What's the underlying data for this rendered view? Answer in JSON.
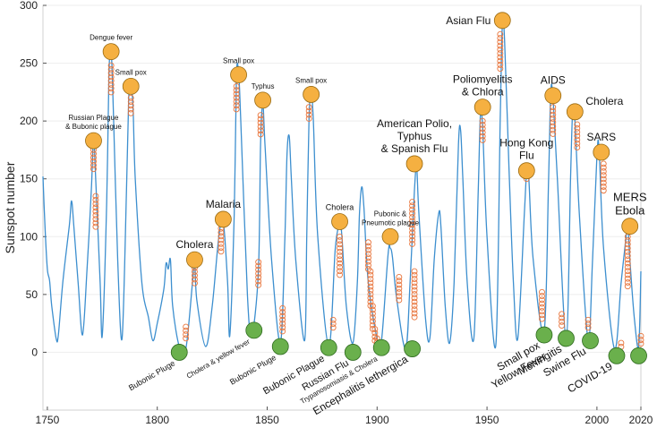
{
  "chart_data": {
    "type": "line",
    "title": "",
    "xlabel": "",
    "ylabel": "Sunspot number",
    "xlim": [
      1748,
      2020
    ],
    "ylim": [
      -50,
      300
    ],
    "x_ticks": [
      1750,
      1800,
      1850,
      1900,
      1950,
      2000,
      2020
    ],
    "y_ticks": [
      0,
      50,
      100,
      150,
      200,
      250,
      300
    ],
    "line_color": "#3d8fcf",
    "epidemic_color": "#f5b041",
    "pandemic_low_color": "#6ab04c",
    "marker_color": "#e8743b",
    "sunspot_series": {
      "name": "Sunspot number",
      "points": [
        [
          1748,
          152
        ],
        [
          1749,
          105
        ],
        [
          1750,
          72
        ],
        [
          1751,
          62
        ],
        [
          1752,
          40
        ],
        [
          1754,
          12
        ],
        [
          1755,
          15
        ],
        [
          1757,
          60
        ],
        [
          1760,
          110
        ],
        [
          1761,
          131
        ],
        [
          1762,
          110
        ],
        [
          1764,
          60
        ],
        [
          1766,
          15
        ],
        [
          1768,
          70
        ],
        [
          1770,
          140
        ],
        [
          1771,
          185
        ],
        [
          1772,
          150
        ],
        [
          1774,
          60
        ],
        [
          1775,
          15
        ],
        [
          1777,
          130
        ],
        [
          1778,
          240
        ],
        [
          1779,
          261
        ],
        [
          1780,
          210
        ],
        [
          1782,
          80
        ],
        [
          1784,
          12
        ],
        [
          1786,
          140
        ],
        [
          1787,
          220
        ],
        [
          1788,
          232
        ],
        [
          1789,
          210
        ],
        [
          1790,
          150
        ],
        [
          1793,
          60
        ],
        [
          1796,
          30
        ],
        [
          1798,
          10
        ],
        [
          1800,
          25
        ],
        [
          1803,
          55
        ],
        [
          1804,
          77
        ],
        [
          1805,
          72
        ],
        [
          1806,
          80
        ],
        [
          1807,
          40
        ],
        [
          1810,
          5
        ],
        [
          1813,
          3
        ],
        [
          1816,
          60
        ],
        [
          1817,
          78
        ],
        [
          1818,
          45
        ],
        [
          1822,
          5
        ],
        [
          1825,
          40
        ],
        [
          1828,
          100
        ],
        [
          1830,
          113
        ],
        [
          1832,
          60
        ],
        [
          1833,
          15
        ],
        [
          1835,
          120
        ],
        [
          1836,
          238
        ],
        [
          1837,
          242
        ],
        [
          1838,
          200
        ],
        [
          1841,
          50
        ],
        [
          1843,
          15
        ],
        [
          1846,
          70
        ],
        [
          1847,
          180
        ],
        [
          1848,
          215
        ],
        [
          1849,
          180
        ],
        [
          1852,
          80
        ],
        [
          1856,
          8
        ],
        [
          1858,
          95
        ],
        [
          1859,
          170
        ],
        [
          1860,
          187
        ],
        [
          1861,
          150
        ],
        [
          1863,
          80
        ],
        [
          1867,
          10
        ],
        [
          1868,
          100
        ],
        [
          1869,
          200
        ],
        [
          1870,
          225
        ],
        [
          1871,
          200
        ],
        [
          1873,
          100
        ],
        [
          1878,
          5
        ],
        [
          1881,
          90
        ],
        [
          1883,
          110
        ],
        [
          1884,
          100
        ],
        [
          1886,
          40
        ],
        [
          1889,
          8
        ],
        [
          1891,
          60
        ],
        [
          1892,
          120
        ],
        [
          1893,
          143
        ],
        [
          1894,
          125
        ],
        [
          1896,
          60
        ],
        [
          1900,
          12
        ],
        [
          1902,
          10
        ],
        [
          1905,
          85
        ],
        [
          1906,
          90
        ],
        [
          1907,
          82
        ],
        [
          1909,
          45
        ],
        [
          1913,
          3
        ],
        [
          1915,
          60
        ],
        [
          1917,
          140
        ],
        [
          1918,
          160
        ],
        [
          1919,
          120
        ],
        [
          1922,
          30
        ],
        [
          1924,
          12
        ],
        [
          1926,
          80
        ],
        [
          1928,
          120
        ],
        [
          1929,
          110
        ],
        [
          1931,
          40
        ],
        [
          1933,
          8
        ],
        [
          1935,
          60
        ],
        [
          1937,
          180
        ],
        [
          1938,
          192
        ],
        [
          1939,
          150
        ],
        [
          1941,
          60
        ],
        [
          1944,
          12
        ],
        [
          1946,
          140
        ],
        [
          1947,
          205
        ],
        [
          1948,
          195
        ],
        [
          1950,
          100
        ],
        [
          1954,
          6
        ],
        [
          1956,
          200
        ],
        [
          1957,
          285
        ],
        [
          1958,
          270
        ],
        [
          1960,
          160
        ],
        [
          1962,
          60
        ],
        [
          1964,
          12
        ],
        [
          1967,
          120
        ],
        [
          1968,
          155
        ],
        [
          1969,
          150
        ],
        [
          1971,
          80
        ],
        [
          1976,
          18
        ],
        [
          1978,
          150
        ],
        [
          1979,
          225
        ],
        [
          1980,
          220
        ],
        [
          1982,
          150
        ],
        [
          1986,
          12
        ],
        [
          1988,
          150
        ],
        [
          1989,
          210
        ],
        [
          1990,
          200
        ],
        [
          1992,
          120
        ],
        [
          1996,
          10
        ],
        [
          1998,
          80
        ],
        [
          2000,
          170
        ],
        [
          2001,
          175
        ],
        [
          2003,
          90
        ],
        [
          2008,
          3
        ],
        [
          2011,
          60
        ],
        [
          2013,
          95
        ],
        [
          2014,
          110
        ],
        [
          2015,
          80
        ],
        [
          2017,
          30
        ],
        [
          2019,
          5
        ],
        [
          2020,
          70
        ]
      ]
    },
    "epidemics": [
      {
        "label": "Russian Plague\n& Bubonic plague",
        "year": 1771,
        "value": 183,
        "label_side": "above",
        "font": 8,
        "circle_years": [
          1771,
          1772
        ],
        "circle_values": [
          [
            175,
            158
          ],
          [
            135,
            107
          ]
        ]
      },
      {
        "label": "Dengue fever",
        "year": 1779,
        "value": 260,
        "label_side": "above",
        "font": 8,
        "circle_years": [
          1779
        ],
        "circle_values": [
          [
            248,
            224
          ]
        ]
      },
      {
        "label": "Small pox",
        "year": 1788,
        "value": 230,
        "label_side": "above",
        "font": 8,
        "circle_years": [
          1788,
          1789
        ],
        "circle_values": [
          [
            220,
            206
          ]
        ]
      },
      {
        "label": "Cholera",
        "year": 1817,
        "value": 80,
        "label_side": "above",
        "font": 12,
        "circle_years": [
          1817
        ],
        "circle_values": [
          [
            73,
            57
          ]
        ]
      },
      {
        "label": "Malaria",
        "year": 1830,
        "value": 115,
        "label_side": "above",
        "font": 12,
        "circle_years": [
          1829
        ],
        "circle_values": [
          [
            107,
            87
          ]
        ]
      },
      {
        "label": "Small pox",
        "year": 1837,
        "value": 240,
        "label_side": "above",
        "font": 8,
        "circle_years": [
          1836,
          1837
        ],
        "circle_values": [
          [
            230,
            210
          ]
        ]
      },
      {
        "label": "Typhus",
        "year": 1848,
        "value": 218,
        "label_side": "above",
        "font": 8,
        "circle_years": [
          1847,
          1848
        ],
        "circle_values": [
          [
            205,
            187
          ]
        ]
      },
      {
        "label": "Small pox",
        "year": 1870,
        "value": 223,
        "label_side": "above",
        "font": 8,
        "circle_years": [
          1869,
          1870
        ],
        "circle_values": [
          [
            212,
            200
          ]
        ]
      },
      {
        "label": "Cholera",
        "year": 1883,
        "value": 113,
        "label_side": "above",
        "font": 9,
        "circle_years": [
          1883
        ],
        "circle_values": [
          [
            100,
            65
          ]
        ]
      },
      {
        "label": "Pubonic &\nPneumotic plague",
        "year": 1906,
        "value": 100,
        "label_side": "above",
        "font": 8,
        "circle_years": [
          1910
        ],
        "circle_values": [
          [
            65,
            45
          ]
        ]
      },
      {
        "label": "American Polio,\nTyphus\n& Spanish Flu",
        "year": 1917,
        "value": 163,
        "label_side": "above",
        "font": 12,
        "circle_years": [
          1916,
          1917,
          1918
        ],
        "circle_values": [
          [
            130,
            92
          ],
          [
            70,
            30
          ]
        ]
      },
      {
        "label": "Poliomyelitis\n& Chlora",
        "year": 1948,
        "value": 212,
        "label_side": "above",
        "font": 12,
        "circle_years": [
          1948
        ],
        "circle_values": [
          [
            200,
            183
          ]
        ]
      },
      {
        "label": "Asian Flu",
        "year": 1957,
        "value": 287,
        "label_side": "left",
        "font": 12,
        "circle_years": [
          1956,
          1957
        ],
        "circle_values": [
          [
            275,
            245
          ]
        ]
      },
      {
        "label": "Hong Kong\nFlu",
        "year": 1968,
        "value": 157,
        "label_side": "above",
        "font": 12,
        "circle_years": [
          1968
        ],
        "circle_values": [
          [
            150,
            148
          ]
        ]
      },
      {
        "label": "AIDS",
        "year": 1980,
        "value": 222,
        "label_side": "above",
        "font": 12,
        "circle_years": [
          1980,
          1981
        ],
        "circle_values": [
          [
            212,
            188
          ]
        ]
      },
      {
        "label": "Cholera",
        "year": 1990,
        "value": 208,
        "label_side": "right",
        "font": 12,
        "circle_years": [
          1991
        ],
        "circle_values": [
          [
            197,
            177
          ]
        ]
      },
      {
        "label": "SARS",
        "year": 2002,
        "value": 173,
        "label_side": "above",
        "font": 12,
        "circle_years": [
          2003
        ],
        "circle_values": [
          [
            163,
            137
          ]
        ]
      },
      {
        "label": "MERS\nEbola",
        "year": 2015,
        "value": 109,
        "label_side": "above",
        "font": 13,
        "circle_years": [
          2014
        ],
        "circle_values": [
          [
            100,
            55
          ]
        ]
      }
    ],
    "pandemics_low": [
      {
        "label": "Bubonic Pluge",
        "year": 1810,
        "value": 0,
        "font": 9,
        "circle_years": [
          1813
        ],
        "circle_values": [
          [
            22,
            10
          ]
        ]
      },
      {
        "label": "Cholera & yellow fever",
        "year": 1844,
        "value": 19,
        "font": 8,
        "circle_years": [],
        "circle_values": []
      },
      {
        "label": "Bubonic Pluge",
        "year": 1856,
        "value": 5,
        "font": 9,
        "circle_years": [
          1846
        ],
        "circle_values": [
          [
            78,
            55
          ]
        ]
      },
      {
        "label": "Bubonic Plague",
        "year": 1878,
        "value": 4,
        "font": 11,
        "circle_years": [
          1857
        ],
        "circle_values": [
          [
            38,
            18
          ]
        ]
      },
      {
        "label": "Russian Flu",
        "year": 1889,
        "value": 0,
        "font": 11,
        "circle_years": [
          1880
        ],
        "circle_values": [
          [
            28,
            20
          ]
        ]
      },
      {
        "label": "Trypanosomiasis & Cholera",
        "year": 1902,
        "value": 4,
        "font": 8,
        "circle_years": [
          1896,
          1897,
          1898,
          1899,
          1900
        ],
        "circle_values": [
          [
            95,
            70
          ],
          [
            70,
            40
          ],
          [
            40,
            20
          ],
          [
            20,
            10
          ],
          [
            12,
            4
          ]
        ]
      },
      {
        "label": "Encephalitis lethergica",
        "year": 1916,
        "value": 3,
        "font": 12,
        "circle_years": [],
        "circle_values": []
      },
      {
        "label": "Small pox\nYellow Fever",
        "year": 1976,
        "value": 15,
        "font": 12,
        "circle_years": [
          1975
        ],
        "circle_values": [
          [
            52,
            28
          ]
        ]
      },
      {
        "label": "Meningitis",
        "year": 1986,
        "value": 12,
        "font": 12,
        "circle_years": [
          1984
        ],
        "circle_values": [
          [
            33,
            20
          ]
        ]
      },
      {
        "label": "Swine Flu",
        "year": 1997,
        "value": 10,
        "font": 12,
        "circle_years": [
          1996
        ],
        "circle_values": [
          [
            28,
            20
          ]
        ]
      },
      {
        "label": "COVID-19",
        "year": 2009,
        "value": -3,
        "font": 12,
        "circle_years": [
          2011
        ],
        "circle_values": [
          [
            8,
            3
          ]
        ]
      },
      {
        "label": "",
        "year": 2019,
        "value": -3,
        "font": 12,
        "circle_years": [
          2020
        ],
        "circle_values": [
          [
            14,
            5
          ]
        ]
      }
    ]
  }
}
